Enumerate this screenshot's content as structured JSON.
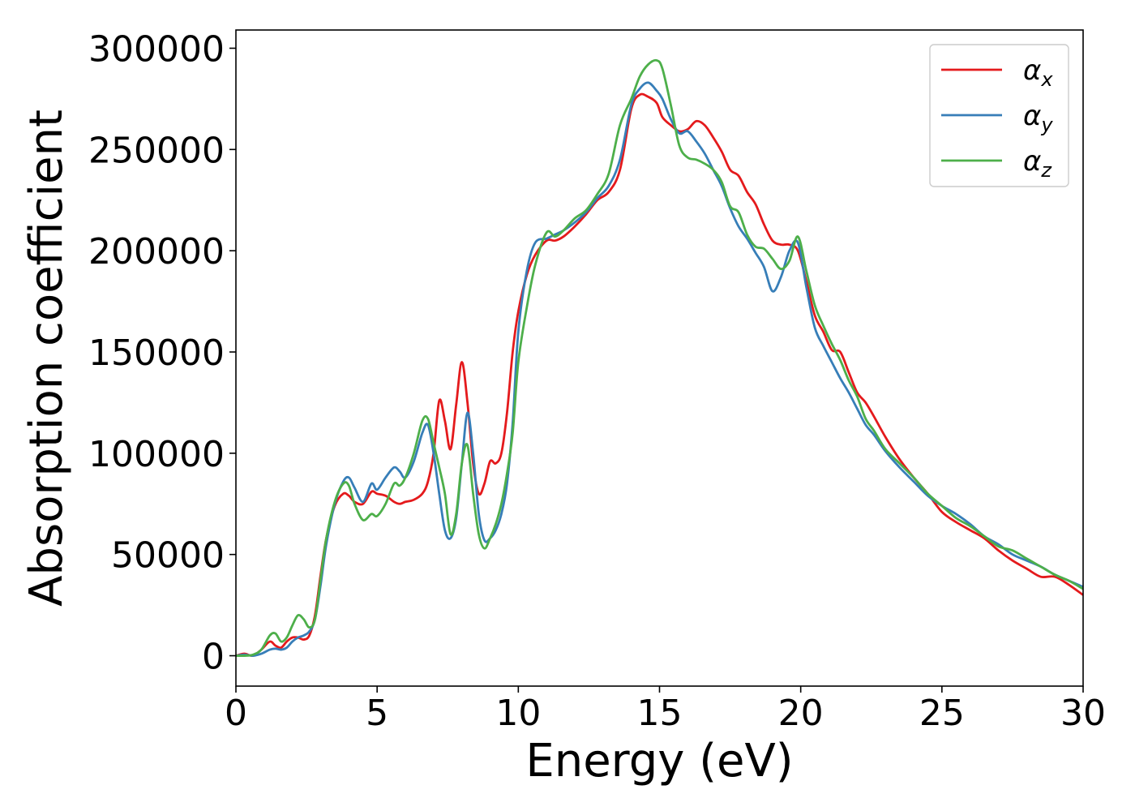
{
  "chart_data": {
    "type": "line",
    "title": "",
    "xlabel": "Energy (eV)",
    "ylabel": "Absorption coefficient",
    "xlim": [
      0,
      30
    ],
    "ylim": [
      -15000,
      309000
    ],
    "xticks": [
      0,
      5,
      10,
      15,
      20,
      25,
      30
    ],
    "yticks": [
      0,
      50000,
      100000,
      150000,
      200000,
      250000,
      300000
    ],
    "grid": false,
    "legend_position": "top-right",
    "series": [
      {
        "name": "αx",
        "name_base": "α",
        "name_sub": "x",
        "color": "#e41a1c",
        "x": [
          0,
          0.3,
          0.6,
          0.9,
          1.2,
          1.4,
          1.6,
          1.8,
          2.0,
          2.2,
          2.4,
          2.6,
          2.8,
          3.0,
          3.2,
          3.5,
          3.8,
          4.0,
          4.2,
          4.5,
          4.8,
          5.0,
          5.3,
          5.6,
          5.8,
          6.0,
          6.3,
          6.6,
          6.8,
          7.0,
          7.2,
          7.4,
          7.6,
          7.8,
          8.0,
          8.2,
          8.4,
          8.6,
          8.8,
          9.0,
          9.2,
          9.4,
          9.6,
          9.8,
          10.0,
          10.3,
          10.6,
          11.0,
          11.3,
          11.6,
          12.0,
          12.4,
          12.8,
          13.2,
          13.6,
          14.0,
          14.3,
          14.6,
          14.9,
          15.1,
          15.4,
          15.7,
          16.0,
          16.3,
          16.6,
          16.9,
          17.2,
          17.5,
          17.8,
          18.1,
          18.4,
          18.7,
          19.0,
          19.3,
          19.6,
          19.9,
          20.2,
          20.5,
          20.8,
          21.1,
          21.4,
          21.7,
          22.0,
          22.3,
          22.6,
          23.0,
          23.5,
          24.0,
          24.5,
          25.0,
          25.5,
          26.0,
          26.5,
          27.0,
          27.5,
          28.0,
          28.5,
          29.0,
          29.5,
          30.0
        ],
        "y": [
          0,
          1000,
          0,
          3000,
          7000,
          5000,
          4000,
          7000,
          9000,
          9000,
          8000,
          10000,
          20000,
          40000,
          58000,
          74000,
          80000,
          79000,
          76000,
          75000,
          81000,
          80000,
          79000,
          76000,
          75000,
          76000,
          77000,
          80000,
          86000,
          100000,
          126000,
          116000,
          102000,
          124000,
          145000,
          125000,
          95000,
          80000,
          85000,
          96000,
          95000,
          100000,
          120000,
          150000,
          170000,
          188000,
          198000,
          205000,
          205000,
          207000,
          212000,
          218000,
          225000,
          229000,
          240000,
          270000,
          277000,
          276000,
          273000,
          266000,
          262000,
          259000,
          260000,
          264000,
          262000,
          256000,
          249000,
          240000,
          237000,
          229000,
          223000,
          213000,
          205000,
          203000,
          203000,
          200000,
          185000,
          168000,
          160000,
          151000,
          150000,
          140000,
          130000,
          125000,
          118000,
          108000,
          97000,
          88000,
          80000,
          71000,
          66000,
          62000,
          58000,
          52000,
          47000,
          43000,
          39000,
          39000,
          35000,
          30000
        ]
      },
      {
        "name": "αy",
        "name_base": "α",
        "name_sub": "y",
        "color": "#377eb8",
        "x": [
          0,
          0.3,
          0.6,
          0.9,
          1.2,
          1.4,
          1.6,
          1.8,
          2.0,
          2.2,
          2.4,
          2.6,
          2.8,
          3.0,
          3.2,
          3.5,
          3.8,
          4.0,
          4.2,
          4.5,
          4.8,
          5.0,
          5.3,
          5.6,
          5.8,
          6.0,
          6.3,
          6.6,
          6.8,
          7.0,
          7.2,
          7.4,
          7.6,
          7.8,
          8.0,
          8.2,
          8.4,
          8.6,
          8.8,
          9.0,
          9.2,
          9.4,
          9.6,
          9.8,
          10.0,
          10.3,
          10.6,
          11.0,
          11.3,
          11.6,
          12.0,
          12.4,
          12.8,
          13.2,
          13.6,
          14.0,
          14.3,
          14.6,
          14.9,
          15.1,
          15.4,
          15.7,
          16.0,
          16.3,
          16.6,
          16.9,
          17.2,
          17.5,
          17.8,
          18.1,
          18.4,
          18.7,
          19.0,
          19.3,
          19.6,
          19.9,
          20.2,
          20.5,
          20.8,
          21.1,
          21.4,
          21.7,
          22.0,
          22.3,
          22.6,
          23.0,
          23.5,
          24.0,
          24.5,
          25.0,
          25.5,
          26.0,
          26.5,
          27.0,
          27.5,
          28.0,
          28.5,
          29.0,
          29.5,
          30.0
        ],
        "y": [
          0,
          500,
          0,
          1000,
          3000,
          3500,
          3000,
          4000,
          7000,
          9000,
          10000,
          12000,
          18000,
          35000,
          55000,
          75000,
          86000,
          88000,
          83000,
          76000,
          85000,
          82000,
          88000,
          93000,
          91000,
          88000,
          96000,
          110000,
          114000,
          100000,
          80000,
          62000,
          58000,
          68000,
          95000,
          120000,
          100000,
          70000,
          57000,
          58000,
          62000,
          70000,
          85000,
          115000,
          160000,
          190000,
          204000,
          206000,
          208000,
          210000,
          214000,
          219000,
          226000,
          232000,
          245000,
          272000,
          280000,
          283000,
          279000,
          275000,
          265000,
          258000,
          259000,
          254000,
          248000,
          240000,
          232000,
          221000,
          212000,
          206000,
          199000,
          192000,
          180000,
          187000,
          200000,
          204000,
          182000,
          162000,
          153000,
          145000,
          137000,
          130000,
          122000,
          114000,
          109000,
          101000,
          93000,
          86000,
          79000,
          74000,
          70000,
          65000,
          59000,
          55000,
          50000,
          47000,
          44000,
          40000,
          37000,
          34000
        ]
      },
      {
        "name": "αz",
        "name_base": "α",
        "name_sub": "z",
        "color": "#4daf4a",
        "x": [
          0,
          0.3,
          0.6,
          0.9,
          1.2,
          1.4,
          1.6,
          1.8,
          2.0,
          2.2,
          2.4,
          2.6,
          2.8,
          3.0,
          3.2,
          3.5,
          3.8,
          4.0,
          4.2,
          4.5,
          4.8,
          5.0,
          5.3,
          5.6,
          5.8,
          6.0,
          6.3,
          6.6,
          6.8,
          7.0,
          7.2,
          7.4,
          7.6,
          7.8,
          8.0,
          8.2,
          8.4,
          8.6,
          8.8,
          9.0,
          9.2,
          9.4,
          9.6,
          9.8,
          10.0,
          10.3,
          10.6,
          11.0,
          11.3,
          11.6,
          12.0,
          12.4,
          12.8,
          13.2,
          13.6,
          14.0,
          14.3,
          14.6,
          14.9,
          15.1,
          15.4,
          15.7,
          16.0,
          16.3,
          16.6,
          16.9,
          17.2,
          17.5,
          17.8,
          18.1,
          18.4,
          18.7,
          19.0,
          19.3,
          19.6,
          19.9,
          20.2,
          20.5,
          20.8,
          21.1,
          21.4,
          21.7,
          22.0,
          22.3,
          22.6,
          23.0,
          23.5,
          24.0,
          24.5,
          25.0,
          25.5,
          26.0,
          26.5,
          27.0,
          27.5,
          28.0,
          28.5,
          29.0,
          29.5,
          30.0
        ],
        "y": [
          0,
          0,
          500,
          3000,
          10000,
          11000,
          7000,
          9000,
          15000,
          20000,
          18000,
          14000,
          18000,
          38000,
          58000,
          76000,
          85000,
          84000,
          75000,
          67000,
          70000,
          69000,
          75000,
          85000,
          84000,
          88000,
          100000,
          116000,
          117000,
          105000,
          93000,
          80000,
          60000,
          70000,
          95000,
          104000,
          80000,
          60000,
          53000,
          58000,
          65000,
          75000,
          90000,
          110000,
          145000,
          172000,
          193000,
          209000,
          207000,
          210000,
          216000,
          220000,
          228000,
          238000,
          262000,
          275000,
          286000,
          292000,
          294000,
          290000,
          272000,
          252000,
          246000,
          245000,
          243000,
          240000,
          234000,
          222000,
          219000,
          208000,
          202000,
          201000,
          196000,
          191000,
          195000,
          207000,
          190000,
          173000,
          163000,
          154000,
          146000,
          136000,
          128000,
          117000,
          111000,
          102000,
          95000,
          88000,
          80000,
          74000,
          68000,
          64000,
          59000,
          54000,
          52000,
          48000,
          44000,
          40000,
          37000,
          33000
        ]
      }
    ]
  }
}
